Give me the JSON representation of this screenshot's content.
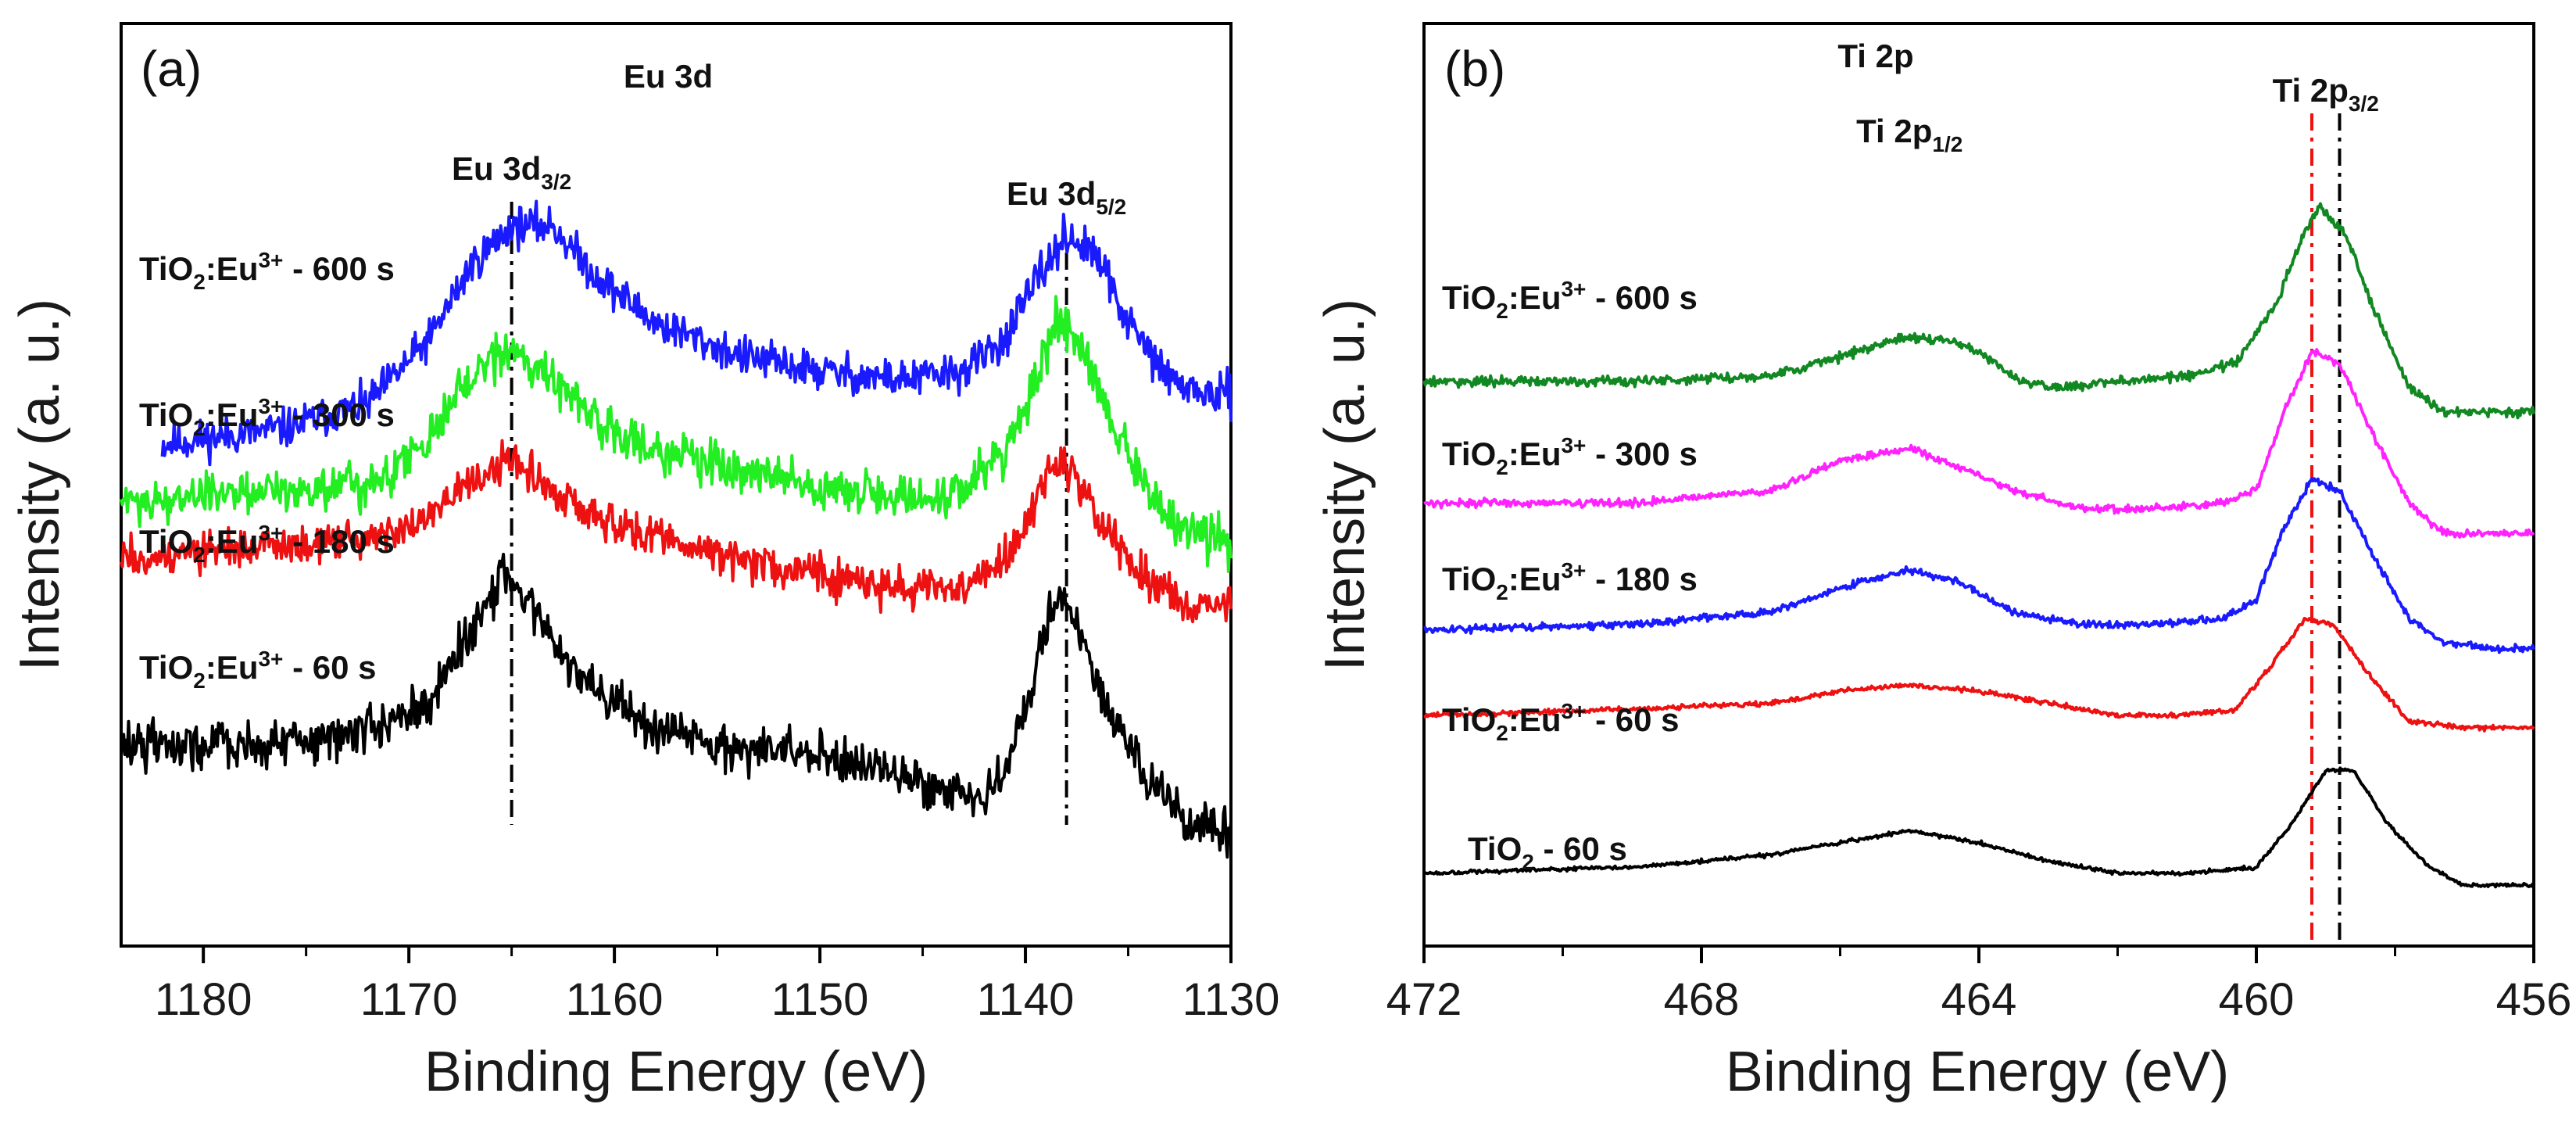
{
  "chart_data": [
    {
      "type": "line",
      "panel": "(a)",
      "title": "Eu 3d",
      "xlabel": "Binding Energy (eV)",
      "ylabel": "Intensity (a. u.)",
      "xlim": [
        1184,
        1130
      ],
      "x_ticks": [
        1180,
        1170,
        1160,
        1150,
        1140,
        1130
      ],
      "x_tick_labels": [
        "1180",
        "1170",
        "1160",
        "1150",
        "1140",
        "1130"
      ],
      "peak_labels": [
        {
          "base": "Eu 3d",
          "sub": "3/2",
          "x": 1165
        },
        {
          "base": "Eu 3d",
          "sub": "5/2",
          "x": 1138
        }
      ],
      "reference_lines": [
        {
          "x": 1165,
          "color": "#000000"
        },
        {
          "x": 1138,
          "color": "#000000"
        }
      ],
      "series": [
        {
          "name": "TiO2:Eu3+ - 600 s",
          "label_pre": "TiO",
          "label_sub": "2",
          "label_mid": ":Eu",
          "label_sup": "3+",
          "label_post": " - 600 s",
          "color": "#1a1aff",
          "x_start": 1182,
          "x_end": 1130,
          "noise": 0.012,
          "points": [
            [
              1182,
              0.2
            ],
            [
              1176,
              0.22
            ],
            [
              1172,
              0.25
            ],
            [
              1169,
              0.33
            ],
            [
              1167,
              0.42
            ],
            [
              1165,
              0.47
            ],
            [
              1163,
              0.47
            ],
            [
              1161,
              0.41
            ],
            [
              1158,
              0.35
            ],
            [
              1154,
              0.31
            ],
            [
              1150,
              0.29
            ],
            [
              1146,
              0.28
            ],
            [
              1143,
              0.29
            ],
            [
              1141,
              0.33
            ],
            [
              1139.5,
              0.4
            ],
            [
              1138,
              0.46
            ],
            [
              1136.5,
              0.43
            ],
            [
              1135,
              0.35
            ],
            [
              1133,
              0.28
            ],
            [
              1131,
              0.26
            ],
            [
              1130,
              0.26
            ]
          ]
        },
        {
          "name": "TiO2:Eu3+ - 300 s",
          "label_pre": "TiO",
          "label_sub": "2",
          "label_mid": ":Eu",
          "label_sup": "3+",
          "label_post": " - 300 s",
          "color": "#22ee22",
          "x_start": 1184,
          "x_end": 1130,
          "noise": 0.014,
          "points": [
            [
              1184,
              0.13
            ],
            [
              1178,
              0.14
            ],
            [
              1172,
              0.15
            ],
            [
              1169,
              0.21
            ],
            [
              1167,
              0.28
            ],
            [
              1165,
              0.32
            ],
            [
              1163,
              0.28
            ],
            [
              1160,
              0.21
            ],
            [
              1156,
              0.18
            ],
            [
              1152,
              0.16
            ],
            [
              1148,
              0.14
            ],
            [
              1145,
              0.13
            ],
            [
              1143,
              0.14
            ],
            [
              1141,
              0.19
            ],
            [
              1139.5,
              0.28
            ],
            [
              1138.5,
              0.36
            ],
            [
              1137.5,
              0.33
            ],
            [
              1136,
              0.24
            ],
            [
              1134,
              0.14
            ],
            [
              1132,
              0.09
            ],
            [
              1130,
              0.08
            ]
          ]
        },
        {
          "name": "TiO2:Eu3+ - 180 s",
          "label_pre": "TiO",
          "label_sub": "2",
          "label_mid": ":Eu",
          "label_sup": "3+",
          "label_post": " - 180 s",
          "color": "#ee1111",
          "x_start": 1184,
          "x_end": 1130,
          "noise": 0.012,
          "points": [
            [
              1184,
              0.06
            ],
            [
              1178,
              0.07
            ],
            [
              1172,
              0.08
            ],
            [
              1169,
              0.11
            ],
            [
              1167,
              0.15
            ],
            [
              1165,
              0.18
            ],
            [
              1163,
              0.14
            ],
            [
              1160,
              0.1
            ],
            [
              1156,
              0.07
            ],
            [
              1152,
              0.05
            ],
            [
              1148,
              0.03
            ],
            [
              1145,
              0.02
            ],
            [
              1143,
              0.02
            ],
            [
              1141,
              0.06
            ],
            [
              1139.5,
              0.13
            ],
            [
              1138.5,
              0.18
            ],
            [
              1137.5,
              0.16
            ],
            [
              1136,
              0.09
            ],
            [
              1134,
              0.03
            ],
            [
              1132,
              0.0
            ],
            [
              1130,
              0.0
            ]
          ]
        },
        {
          "name": "TiO2:Eu3+ - 60 s",
          "label_pre": "TiO",
          "label_sub": "2",
          "label_mid": ":Eu",
          "label_sup": "3+",
          "label_post": " - 60 s",
          "color": "#000000",
          "x_start": 1184,
          "x_end": 1130,
          "noise": 0.014,
          "points": [
            [
              1184,
              -0.17
            ],
            [
              1178,
              -0.17
            ],
            [
              1173,
              -0.16
            ],
            [
              1169,
              -0.12
            ],
            [
              1167,
              -0.03
            ],
            [
              1165.5,
              0.04
            ],
            [
              1164,
              0.0
            ],
            [
              1162,
              -0.08
            ],
            [
              1159,
              -0.14
            ],
            [
              1155,
              -0.17
            ],
            [
              1151,
              -0.18
            ],
            [
              1147,
              -0.2
            ],
            [
              1144,
              -0.23
            ],
            [
              1142,
              -0.24
            ],
            [
              1141,
              -0.2
            ],
            [
              1139.5,
              -0.08
            ],
            [
              1138.5,
              0.02
            ],
            [
              1137.5,
              -0.02
            ],
            [
              1136,
              -0.13
            ],
            [
              1134,
              -0.22
            ],
            [
              1132,
              -0.27
            ],
            [
              1130,
              -0.28
            ]
          ]
        }
      ]
    },
    {
      "type": "line",
      "panel": "(b)",
      "title": "Ti 2p",
      "xlabel": "Binding Energy (eV)",
      "ylabel": "Intensity (a. u.)",
      "xlim": [
        472,
        456
      ],
      "x_ticks": [
        472,
        468,
        464,
        460,
        456
      ],
      "x_tick_labels": [
        "472",
        "468",
        "464",
        "460",
        "456"
      ],
      "peak_labels": [
        {
          "base": "Ti 2p",
          "sub": "1/2",
          "x": 465
        },
        {
          "base": "Ti 2p",
          "sub": "3/2",
          "x": 459
        }
      ],
      "reference_lines": [
        {
          "x": 459.2,
          "color": "#ee1111"
        },
        {
          "x": 458.8,
          "color": "#000000"
        }
      ],
      "series": [
        {
          "name": "TiO2:Eu3+ - 600 s",
          "label_pre": "TiO",
          "label_sub": "2",
          "label_mid": ":Eu",
          "label_sup": "3+",
          "label_post": " - 600 s",
          "color": "#118822",
          "x_start": 472,
          "x_end": 456,
          "noise": 0.004,
          "points": [
            [
              472,
              0.31
            ],
            [
              469,
              0.31
            ],
            [
              467,
              0.32
            ],
            [
              466,
              0.35
            ],
            [
              465.2,
              0.38
            ],
            [
              464.5,
              0.38
            ],
            [
              464,
              0.36
            ],
            [
              463.4,
              0.31
            ],
            [
              462.8,
              0.3
            ],
            [
              462,
              0.31
            ],
            [
              461,
              0.32
            ],
            [
              460.3,
              0.34
            ],
            [
              459.7,
              0.44
            ],
            [
              459.3,
              0.56
            ],
            [
              459.1,
              0.6
            ],
            [
              458.7,
              0.55
            ],
            [
              458.3,
              0.43
            ],
            [
              457.8,
              0.3
            ],
            [
              457.3,
              0.26
            ],
            [
              456.5,
              0.26
            ],
            [
              456,
              0.26
            ]
          ]
        },
        {
          "name": "TiO2:Eu3+ - 300 s",
          "label_pre": "TiO",
          "label_sub": "2",
          "label_mid": ":Eu",
          "label_sup": "3+",
          "label_post": " - 300 s",
          "color": "#ff22ff",
          "x_start": 472,
          "x_end": 456,
          "noise": 0.003,
          "points": [
            [
              472,
              0.11
            ],
            [
              469,
              0.11
            ],
            [
              467,
              0.13
            ],
            [
              466,
              0.18
            ],
            [
              465,
              0.2
            ],
            [
              464.3,
              0.17
            ],
            [
              463.5,
              0.13
            ],
            [
              462.5,
              0.1
            ],
            [
              461.5,
              0.1
            ],
            [
              460.5,
              0.11
            ],
            [
              460,
              0.13
            ],
            [
              459.6,
              0.26
            ],
            [
              459.2,
              0.36
            ],
            [
              458.8,
              0.34
            ],
            [
              458.3,
              0.22
            ],
            [
              457.8,
              0.11
            ],
            [
              457.3,
              0.06
            ],
            [
              456.5,
              0.06
            ],
            [
              456,
              0.06
            ]
          ]
        },
        {
          "name": "TiO2:Eu3+ - 180 s",
          "label_pre": "TiO",
          "label_sub": "2",
          "label_mid": ":Eu",
          "label_sup": "3+",
          "label_post": " - 180 s",
          "color": "#1a1aff",
          "x_start": 472,
          "x_end": 456,
          "noise": 0.003,
          "points": [
            [
              472,
              -0.1
            ],
            [
              469,
              -0.09
            ],
            [
              467,
              -0.07
            ],
            [
              466,
              -0.03
            ],
            [
              465,
              0.0
            ],
            [
              464.3,
              -0.02
            ],
            [
              463.5,
              -0.07
            ],
            [
              462.5,
              -0.09
            ],
            [
              461.5,
              -0.09
            ],
            [
              460.5,
              -0.08
            ],
            [
              460,
              -0.05
            ],
            [
              459.6,
              0.07
            ],
            [
              459.2,
              0.15
            ],
            [
              458.8,
              0.13
            ],
            [
              458.3,
              0.02
            ],
            [
              457.8,
              -0.08
            ],
            [
              457.3,
              -0.12
            ],
            [
              456.5,
              -0.13
            ],
            [
              456,
              -0.13
            ]
          ]
        },
        {
          "name": "TiO2:Eu3+ - 60 s",
          "label_pre": "TiO",
          "label_sub": "2",
          "label_mid": ":Eu",
          "label_sup": "3+",
          "label_post": " - 60 s",
          "color": "#ee1111",
          "x_start": 472,
          "x_end": 456,
          "noise": 0.002,
          "points": [
            [
              472,
              -0.24
            ],
            [
              469,
              -0.23
            ],
            [
              467,
              -0.22
            ],
            [
              466,
              -0.2
            ],
            [
              465,
              -0.19
            ],
            [
              464,
              -0.2
            ],
            [
              463,
              -0.22
            ],
            [
              462,
              -0.24
            ],
            [
              461,
              -0.24
            ],
            [
              460.3,
              -0.23
            ],
            [
              459.8,
              -0.16
            ],
            [
              459.3,
              -0.08
            ],
            [
              458.9,
              -0.09
            ],
            [
              458.4,
              -0.17
            ],
            [
              457.8,
              -0.25
            ],
            [
              457,
              -0.26
            ],
            [
              456,
              -0.26
            ]
          ]
        },
        {
          "name": "TiO2 - 60 s",
          "label_pre": "TiO",
          "label_sub": "2",
          "label_mid": "",
          "label_sup": "",
          "label_post": " - 60 s",
          "color": "#000000",
          "x_start": 472,
          "x_end": 456,
          "noise": 0.0015,
          "points": [
            [
              472,
              -0.5
            ],
            [
              469,
              -0.49
            ],
            [
              467,
              -0.47
            ],
            [
              466,
              -0.45
            ],
            [
              465,
              -0.43
            ],
            [
              464,
              -0.45
            ],
            [
              463,
              -0.48
            ],
            [
              462,
              -0.5
            ],
            [
              461,
              -0.5
            ],
            [
              460,
              -0.49
            ],
            [
              459.5,
              -0.42
            ],
            [
              459,
              -0.33
            ],
            [
              458.6,
              -0.33
            ],
            [
              458.1,
              -0.42
            ],
            [
              457.5,
              -0.49
            ],
            [
              457,
              -0.52
            ],
            [
              456,
              -0.52
            ]
          ]
        }
      ]
    }
  ]
}
